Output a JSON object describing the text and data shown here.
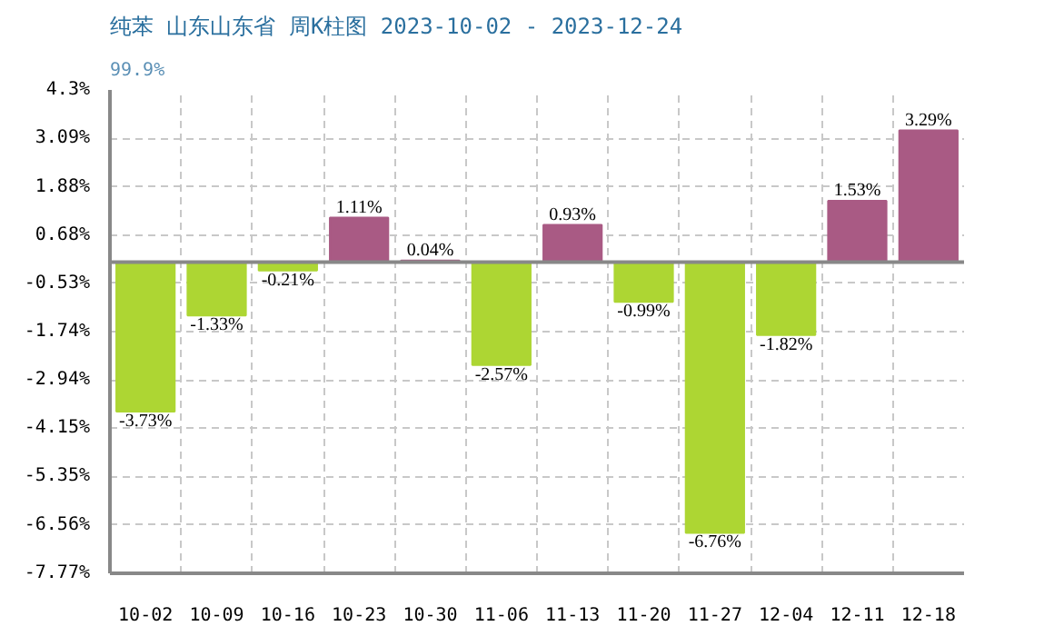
{
  "chart_data": {
    "type": "bar",
    "title": "纯苯 山东山东省 周K柱图 2023-10-02 - 2023-12-24",
    "subtitle": "99.9%",
    "categories": [
      "10-02",
      "10-09",
      "10-16",
      "10-23",
      "10-30",
      "11-06",
      "11-13",
      "11-20",
      "11-27",
      "12-04",
      "12-11",
      "12-18"
    ],
    "values": [
      -3.73,
      -1.33,
      -0.21,
      1.11,
      0.04,
      -2.57,
      0.93,
      -0.99,
      -6.76,
      -1.82,
      1.53,
      3.29
    ],
    "colors": [
      "#add633",
      "#add633",
      "#add633",
      "#a95a84",
      "#a95a84",
      "#add633",
      "#a95a84",
      "#add633",
      "#add633",
      "#add633",
      "#a95a84",
      "#a95a84"
    ],
    "value_labels": [
      "-3.73%",
      "-1.33%",
      "-0.21%",
      "1.11%",
      "0.04%",
      "-2.57%",
      "0.93%",
      "-0.99%",
      "-6.76%",
      "-1.82%",
      "1.53%",
      "3.29%"
    ],
    "ylim": [
      -7.77,
      4.3
    ],
    "yticks": [
      {
        "value": 4.3,
        "label": "4.3%"
      },
      {
        "value": 3.09,
        "label": "3.09%"
      },
      {
        "value": 1.88,
        "label": "1.88%"
      },
      {
        "value": 0.68,
        "label": "0.68%"
      },
      {
        "value": -0.53,
        "label": "-0.53%"
      },
      {
        "value": -1.74,
        "label": "-1.74%"
      },
      {
        "value": -2.94,
        "label": "-2.94%"
      },
      {
        "value": -4.15,
        "label": "-4.15%"
      },
      {
        "value": -5.35,
        "label": "-5.35%"
      },
      {
        "value": -6.56,
        "label": "-6.56%"
      },
      {
        "value": -7.77,
        "label": "-7.77%"
      }
    ],
    "ref_lines": [
      {
        "axis": "y",
        "value": 0,
        "color": "#888888",
        "line_style": "solid"
      }
    ],
    "grid": true
  }
}
